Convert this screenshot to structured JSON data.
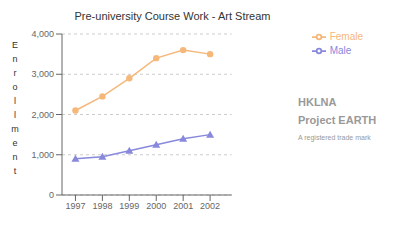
{
  "chart_data": {
    "type": "line",
    "title": "Pre-university Course Work - Art Stream",
    "y_label": "Enrollment",
    "x": [
      1997,
      1998,
      1999,
      2000,
      2001,
      2002
    ],
    "series": [
      {
        "name": "Male",
        "color": "#8888dd",
        "marker": "triangle",
        "values": [
          900,
          950,
          1100,
          1250,
          1400,
          1500
        ]
      },
      {
        "name": "Female",
        "color": "#f5b87a",
        "marker": "circle",
        "values": [
          2100,
          2450,
          2900,
          3400,
          3600,
          3500
        ]
      }
    ],
    "xlim": [
      1996.5,
      2002.8
    ],
    "xticks": [
      1997,
      1998,
      1999,
      2000,
      2001,
      2002
    ],
    "ylim": [
      0,
      4000
    ],
    "yticks": [
      0,
      {
        "value": 1000,
        "label": "1,000"
      },
      {
        "value": 2000,
        "label": "2,000"
      },
      {
        "value": 3000,
        "label": "3,000"
      },
      {
        "value": 4000,
        "label": "4,000"
      }
    ],
    "grid": true,
    "legend": "upper right",
    "annotations": [
      "HKLNA",
      "Project",
      "EARTH",
      "A registered trade mark"
    ]
  }
}
